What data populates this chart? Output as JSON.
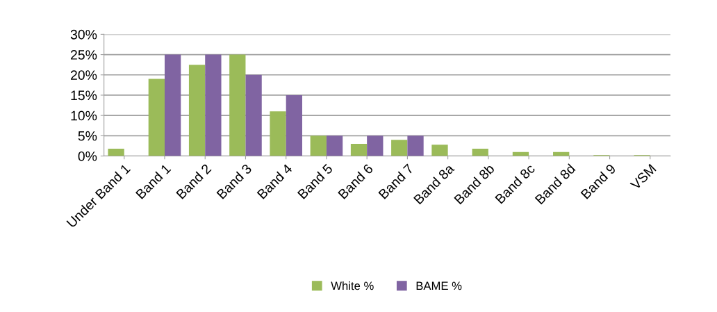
{
  "chart_data": {
    "type": "bar",
    "categories": [
      "Under Band 1",
      "Band 1",
      "Band 2",
      "Band 3",
      "Band 4",
      "Band 5",
      "Band 6",
      "Band 7",
      "Band 8a",
      "Band 8b",
      "Band 8c",
      "Band 8d",
      "Band 9",
      "VSM"
    ],
    "series": [
      {
        "name": "White %",
        "color": "#9bbb59",
        "values": [
          1.8,
          19,
          22.5,
          25,
          11,
          5,
          3,
          4,
          2.8,
          1.8,
          1,
          1,
          0.2,
          0.2
        ]
      },
      {
        "name": "BAME %",
        "color": "#8064a2",
        "values": [
          0,
          25,
          25,
          20,
          15,
          5,
          5,
          5,
          0,
          0,
          0,
          0,
          0,
          0
        ]
      }
    ],
    "ylim": [
      0,
      30
    ],
    "yticks": [
      {
        "value": 0,
        "label": "0%"
      },
      {
        "value": 5,
        "label": "5%"
      },
      {
        "value": 10,
        "label": "10%"
      },
      {
        "value": 15,
        "label": "15%"
      },
      {
        "value": 20,
        "label": "20%"
      },
      {
        "value": 25,
        "label": "25%"
      },
      {
        "value": 30,
        "label": "30%"
      }
    ],
    "grid": "y",
    "legend": "bottom"
  }
}
